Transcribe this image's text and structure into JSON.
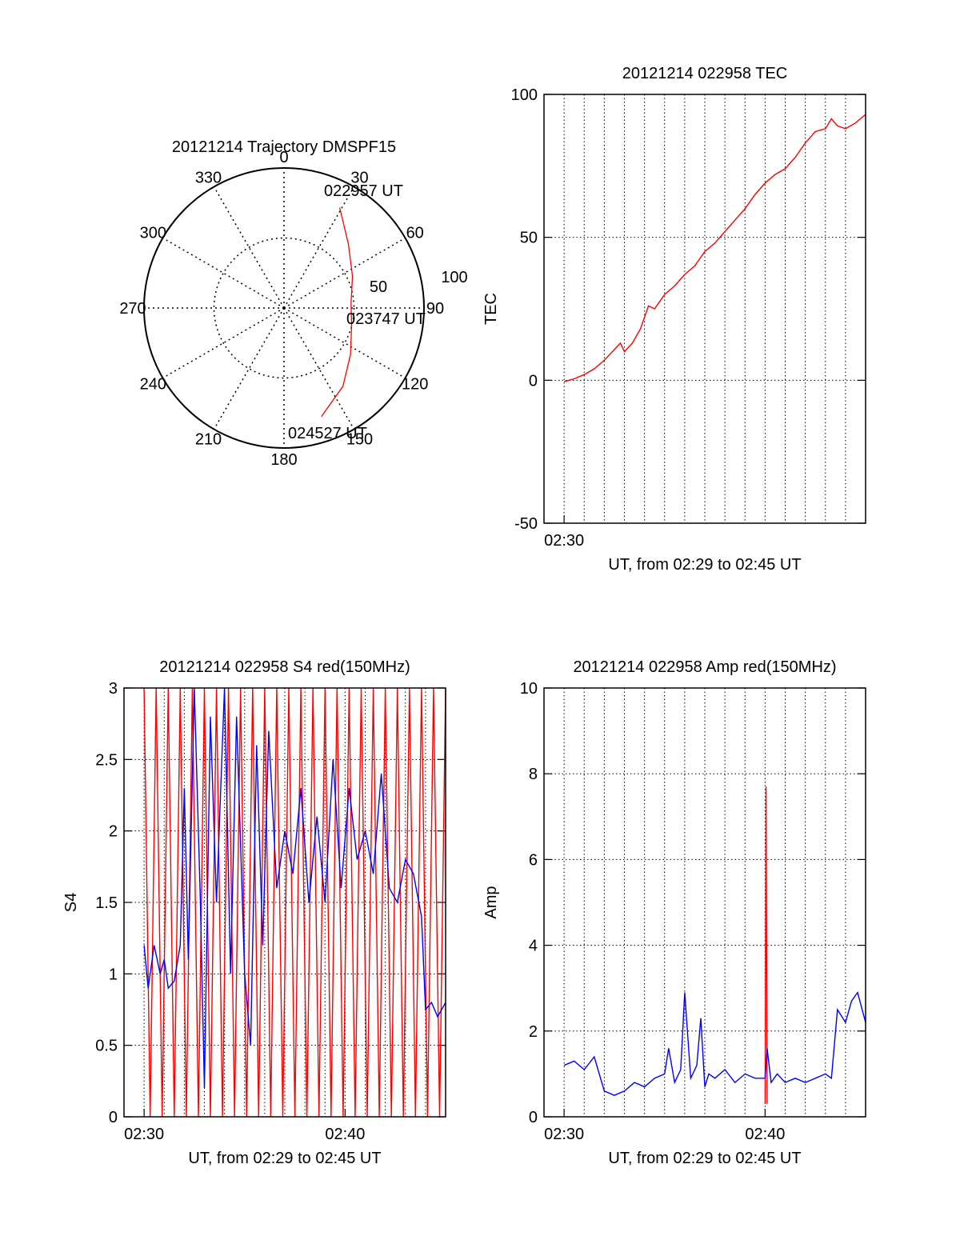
{
  "chart_data": [
    {
      "type": "polar",
      "title": "20121214 Trajectory DMSPF15",
      "azimuth_labels": [
        "0",
        "30",
        "60",
        "90",
        "120",
        "150",
        "180",
        "210",
        "240",
        "270",
        "300",
        "330"
      ],
      "radius_labels": [
        "50",
        "100"
      ],
      "annotations": [
        "022957 UT",
        "023747 UT",
        "024527 UT"
      ],
      "trajectory": {
        "color": "#ff0000",
        "points": [
          {
            "az": 29,
            "r": 82
          },
          {
            "az": 45,
            "r": 65
          },
          {
            "az": 65,
            "r": 54
          },
          {
            "az": 86,
            "r": 48
          },
          {
            "az": 105,
            "r": 50
          },
          {
            "az": 125,
            "r": 58
          },
          {
            "az": 143,
            "r": 70
          },
          {
            "az": 161,
            "r": 82
          }
        ]
      }
    },
    {
      "type": "line",
      "title": "20121214 022958 TEC",
      "xlabel": "UT, from 02:29 to 02:45 UT",
      "ylabel": "TEC",
      "xlim": [
        0,
        16
      ],
      "ylim": [
        -50,
        100
      ],
      "xticks": [
        {
          "x": 1,
          "label": "02:30"
        }
      ],
      "yticks": [
        "-50",
        "0",
        "50",
        "100"
      ],
      "grid": true,
      "series": [
        {
          "color": "#ff0000",
          "x": [
            1.0,
            1.5,
            2.0,
            2.5,
            3.0,
            3.4,
            3.8,
            4.0,
            4.4,
            4.8,
            5.2,
            5.5,
            6.0,
            6.5,
            7.0,
            7.5,
            8.0,
            8.5,
            9.0,
            9.5,
            10.0,
            10.5,
            11.0,
            11.5,
            12.0,
            12.5,
            13.0,
            13.5,
            14.0,
            14.3,
            14.6,
            15.0,
            15.5,
            16.0
          ],
          "y": [
            -0.5,
            0.5,
            2,
            4,
            7,
            10,
            13,
            10,
            13,
            18,
            26,
            25,
            30,
            33,
            37,
            40,
            45,
            48,
            52,
            56,
            60,
            65,
            69,
            72,
            74,
            78,
            83,
            87,
            88,
            91.5,
            89,
            88,
            90,
            93
          ]
        }
      ]
    },
    {
      "type": "line",
      "title": "20121214 022958 S4 red(150MHz)",
      "xlabel": "UT, from 02:29 to 02:45 UT",
      "ylabel": "S4",
      "xlim": [
        0,
        16
      ],
      "ylim": [
        0,
        3
      ],
      "xticks": [
        {
          "x": 1,
          "label": "02:30"
        },
        {
          "x": 11,
          "label": "02:40"
        }
      ],
      "yticks": [
        "0",
        "0.5",
        "1",
        "1.5",
        "2",
        "2.5",
        "3"
      ],
      "grid": true,
      "series": [
        {
          "color": "#ff0000",
          "x": [
            1.0,
            1.3,
            1.6,
            1.9,
            2.2,
            2.5,
            2.8,
            3.1,
            3.4,
            3.7,
            4.0,
            4.3,
            4.6,
            4.9,
            5.2,
            5.5,
            5.8,
            6.1,
            6.4,
            6.7,
            7.0,
            7.3,
            7.6,
            7.9,
            8.2,
            8.5,
            8.8,
            9.1,
            9.4,
            9.7,
            10.0,
            10.3,
            10.6,
            10.9,
            11.2,
            11.5,
            11.8,
            12.1,
            12.4,
            12.7,
            13.0,
            13.3,
            13.6,
            13.9,
            14.2,
            14.5,
            14.8,
            15.1,
            15.4,
            15.7,
            16.0
          ],
          "y": [
            3,
            0,
            3,
            0,
            3,
            0,
            3,
            0,
            3,
            0,
            3,
            0,
            3,
            0,
            3,
            0,
            3,
            0,
            3,
            0,
            3,
            0,
            3,
            0,
            3,
            0,
            3,
            0,
            3,
            0,
            3,
            0,
            3,
            0,
            3,
            0,
            3,
            0,
            3,
            0,
            3,
            0,
            3,
            0,
            3,
            0,
            3,
            0,
            3,
            0,
            3
          ]
        },
        {
          "color": "#0000ff",
          "x": [
            1.0,
            1.2,
            1.5,
            1.8,
            2.0,
            2.2,
            2.5,
            2.8,
            3.0,
            3.2,
            3.5,
            3.8,
            4.0,
            4.3,
            4.6,
            5.0,
            5.3,
            5.6,
            6.0,
            6.3,
            6.6,
            6.9,
            7.2,
            7.6,
            8.0,
            8.4,
            8.8,
            9.2,
            9.6,
            10.0,
            10.4,
            10.8,
            11.2,
            11.6,
            12.0,
            12.4,
            12.8,
            13.2,
            13.6,
            14.0,
            14.4,
            14.8,
            15.0,
            15.3,
            15.6,
            16.0
          ],
          "y": [
            1.2,
            0.9,
            1.2,
            1.0,
            1.1,
            0.9,
            0.95,
            1.2,
            2.3,
            1.1,
            3.0,
            1.5,
            0.2,
            2.8,
            1.5,
            3.0,
            1.0,
            2.8,
            1.0,
            0.5,
            2.6,
            1.2,
            2.7,
            1.6,
            2.0,
            1.7,
            2.3,
            1.5,
            2.1,
            1.5,
            2.5,
            1.6,
            2.3,
            1.8,
            2.0,
            1.7,
            2.4,
            1.6,
            1.5,
            1.8,
            1.7,
            1.4,
            0.75,
            0.8,
            0.7,
            0.8
          ]
        }
      ]
    },
    {
      "type": "line",
      "title": "20121214 022958 Amp red(150MHz)",
      "xlabel": "UT, from 02:29 to 02:45 UT",
      "ylabel": "Amp",
      "xlim": [
        0,
        16
      ],
      "ylim": [
        0,
        10
      ],
      "xticks": [
        {
          "x": 1,
          "label": "02:30"
        },
        {
          "x": 11,
          "label": "02:40"
        }
      ],
      "yticks": [
        "0",
        "2",
        "4",
        "6",
        "8",
        "10"
      ],
      "grid": true,
      "series": [
        {
          "color": "#ff0000",
          "x": [
            11.0,
            11.05,
            11.1
          ],
          "y": [
            0.3,
            7.7,
            0.3
          ]
        },
        {
          "color": "#0000ff",
          "x": [
            1.0,
            1.5,
            2.0,
            2.5,
            3.0,
            3.5,
            4.0,
            4.5,
            5.0,
            5.5,
            6.0,
            6.2,
            6.5,
            6.8,
            7.0,
            7.3,
            7.6,
            7.8,
            8.0,
            8.2,
            8.5,
            9.0,
            9.5,
            10.0,
            10.5,
            11.0,
            11.1,
            11.3,
            11.6,
            12.0,
            12.5,
            13.0,
            13.5,
            14.0,
            14.3,
            14.6,
            15.0,
            15.3,
            15.6,
            16.0
          ],
          "y": [
            1.2,
            1.3,
            1.1,
            1.4,
            0.6,
            0.5,
            0.6,
            0.8,
            0.7,
            0.9,
            1.0,
            1.6,
            0.8,
            1.1,
            2.9,
            0.9,
            1.2,
            2.3,
            0.7,
            1.0,
            0.9,
            1.1,
            0.8,
            1.0,
            0.9,
            0.9,
            1.6,
            0.8,
            1.0,
            0.8,
            0.9,
            0.8,
            0.9,
            1.0,
            0.9,
            2.5,
            2.2,
            2.7,
            2.9,
            2.2
          ]
        }
      ]
    }
  ]
}
